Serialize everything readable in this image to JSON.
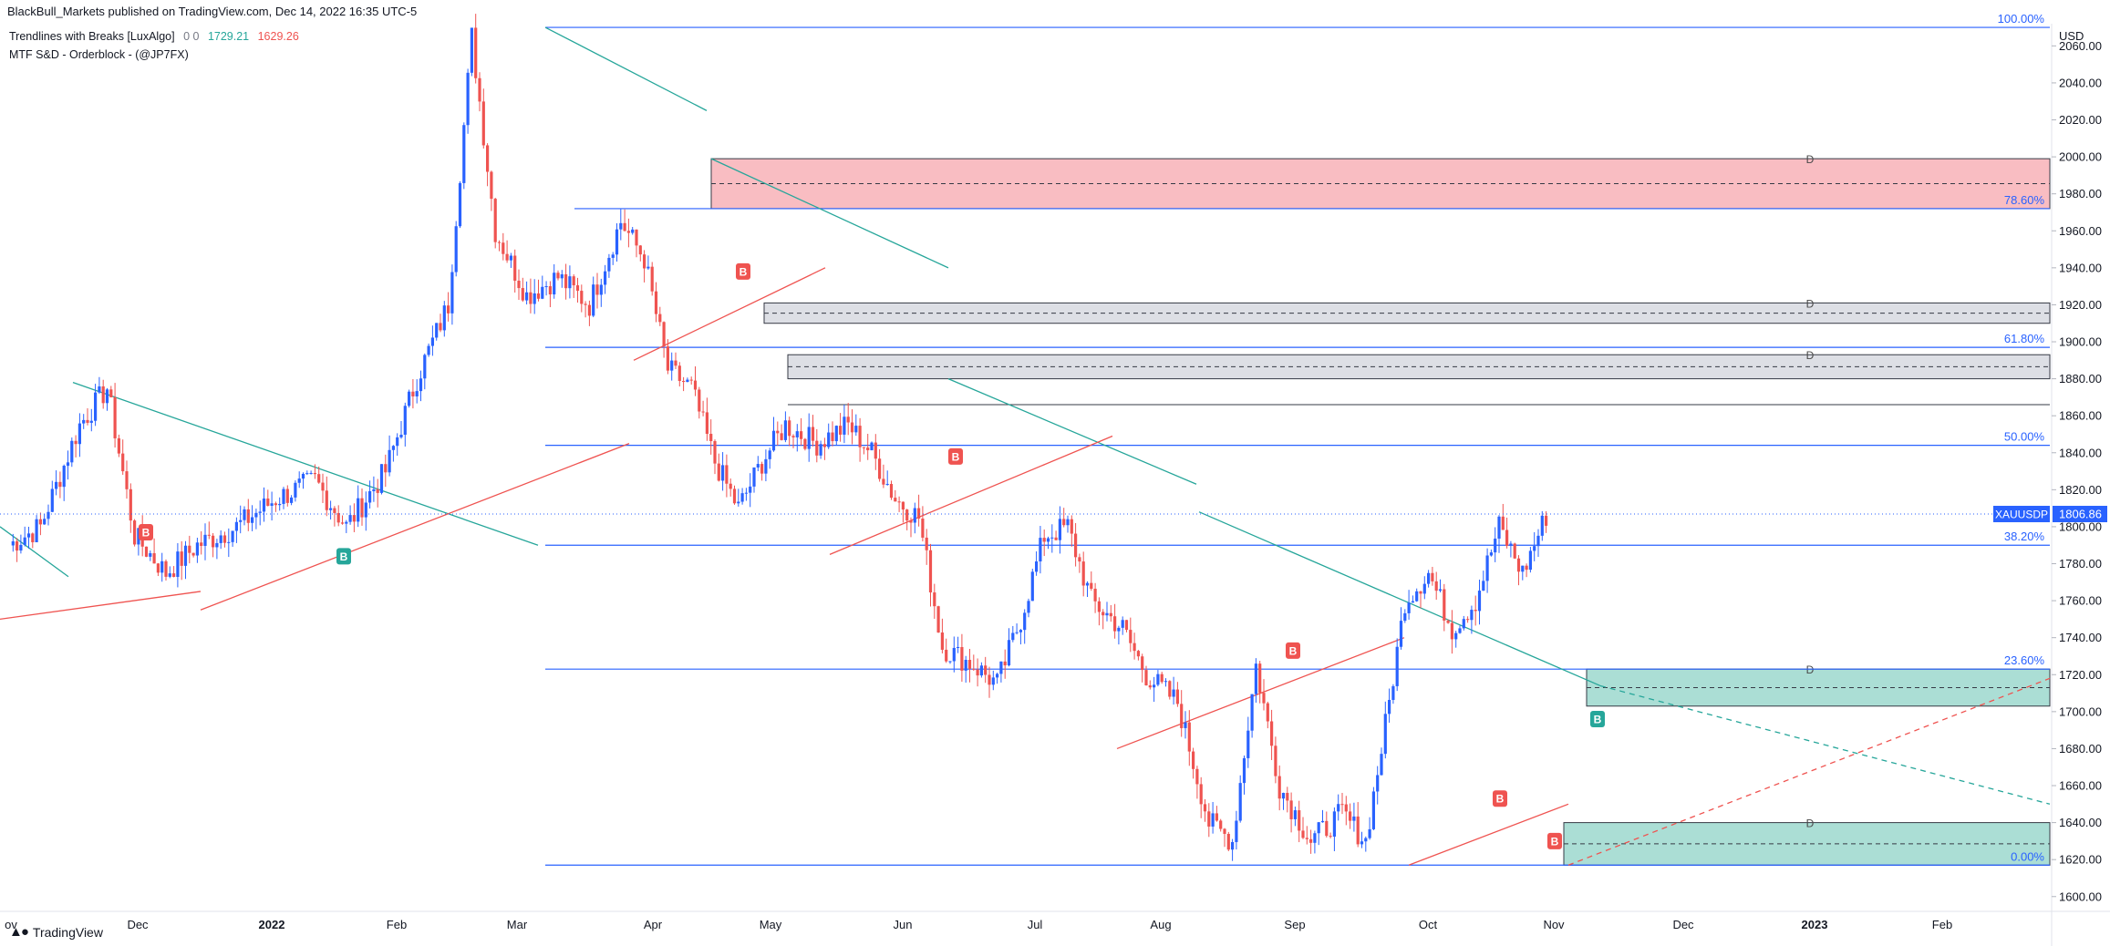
{
  "header": {
    "published_by": "BlackBull_Markets published on TradingView.com, Dec 14, 2022 16:35 UTC-5"
  },
  "legend": {
    "indicator1_name": "Trendlines with Breaks [LuxAlgo]",
    "indicator1_zeros": "0  0",
    "indicator1_value_up": "1729.21",
    "indicator1_value_dn": "1629.26",
    "indicator2_name": "MTF S&D - Orderblock - (@JP7FX)"
  },
  "footer": {
    "brand": "TradingView",
    "logo_icon": "tradingview-logo-icon"
  },
  "price_axis": {
    "currency": "USD"
  },
  "symbol": {
    "name": "XAUUSDP",
    "last_price": "1806.86",
    "last_value": 1806.86
  },
  "colors": {
    "up": "#2962ff",
    "down": "#ef5350",
    "fib": "#2962ff",
    "teal_line": "#26a69a",
    "supply_zone": "#f7a7ae",
    "demand_zone": "#8fd3c7",
    "neutral_zone": "#d1d4dc",
    "break_bull": "#26a69a",
    "break_bear": "#ef5350"
  },
  "chart_data": {
    "type": "candlestick",
    "x_ticks": [
      "ov",
      "Dec",
      "2022",
      "Feb",
      "Mar",
      "Apr",
      "May",
      "Jun",
      "Jul",
      "Aug",
      "Sep",
      "Oct",
      "Nov",
      "Dec",
      "2023",
      "Feb"
    ],
    "y_ticks": [
      1600,
      1620,
      1640,
      1660,
      1680,
      1700,
      1720,
      1740,
      1760,
      1780,
      1800,
      1820,
      1840,
      1860,
      1880,
      1900,
      1920,
      1940,
      1960,
      1980,
      2000,
      2020,
      2040,
      2060
    ],
    "ylim": [
      1592,
      2072
    ],
    "fib_levels": [
      {
        "label": "100.00%",
        "price": 2070
      },
      {
        "label": "78.60%",
        "price": 1972
      },
      {
        "label": "61.80%",
        "price": 1897
      },
      {
        "label": "50.00%",
        "price": 1844
      },
      {
        "label": "38.20%",
        "price": 1790
      },
      {
        "label": "23.60%",
        "price": 1723
      },
      {
        "label": "0.00%",
        "price": 1617
      }
    ],
    "zones": [
      {
        "kind": "supply",
        "top": 1999,
        "bottom": 1972,
        "label": "D"
      },
      {
        "kind": "neutral",
        "top": 1921,
        "bottom": 1910,
        "label": "D"
      },
      {
        "kind": "neutral",
        "top": 1893,
        "bottom": 1880,
        "label": "D"
      },
      {
        "kind": "demand",
        "top": 1723,
        "bottom": 1703,
        "label": "D"
      },
      {
        "kind": "demand",
        "top": 1640,
        "bottom": 1617,
        "label": "D"
      }
    ],
    "break_labels": [
      "B",
      "B",
      "B",
      "B",
      "B",
      "B",
      "B",
      "B"
    ],
    "close_path": [
      {
        "i": 0,
        "price": 1790
      },
      {
        "i": 8,
        "price": 1800
      },
      {
        "i": 18,
        "price": 1855
      },
      {
        "i": 25,
        "price": 1875
      },
      {
        "i": 32,
        "price": 1795
      },
      {
        "i": 40,
        "price": 1775
      },
      {
        "i": 48,
        "price": 1790
      },
      {
        "i": 58,
        "price": 1800
      },
      {
        "i": 68,
        "price": 1815
      },
      {
        "i": 78,
        "price": 1825
      },
      {
        "i": 86,
        "price": 1800
      },
      {
        "i": 96,
        "price": 1830
      },
      {
        "i": 104,
        "price": 1880
      },
      {
        "i": 112,
        "price": 1920
      },
      {
        "i": 118,
        "price": 2065
      },
      {
        "i": 124,
        "price": 1960
      },
      {
        "i": 132,
        "price": 1925
      },
      {
        "i": 140,
        "price": 1935
      },
      {
        "i": 148,
        "price": 1920
      },
      {
        "i": 156,
        "price": 1965
      },
      {
        "i": 162,
        "price": 1945
      },
      {
        "i": 168,
        "price": 1885
      },
      {
        "i": 174,
        "price": 1875
      },
      {
        "i": 180,
        "price": 1835
      },
      {
        "i": 186,
        "price": 1810
      },
      {
        "i": 192,
        "price": 1835
      },
      {
        "i": 198,
        "price": 1855
      },
      {
        "i": 206,
        "price": 1845
      },
      {
        "i": 214,
        "price": 1855
      },
      {
        "i": 220,
        "price": 1840
      },
      {
        "i": 226,
        "price": 1815
      },
      {
        "i": 232,
        "price": 1805
      },
      {
        "i": 238,
        "price": 1735
      },
      {
        "i": 246,
        "price": 1725
      },
      {
        "i": 252,
        "price": 1715
      },
      {
        "i": 258,
        "price": 1750
      },
      {
        "i": 264,
        "price": 1795
      },
      {
        "i": 270,
        "price": 1800
      },
      {
        "i": 276,
        "price": 1760
      },
      {
        "i": 284,
        "price": 1745
      },
      {
        "i": 290,
        "price": 1720
      },
      {
        "i": 298,
        "price": 1705
      },
      {
        "i": 306,
        "price": 1640
      },
      {
        "i": 312,
        "price": 1630
      },
      {
        "i": 318,
        "price": 1725
      },
      {
        "i": 324,
        "price": 1660
      },
      {
        "i": 332,
        "price": 1630
      },
      {
        "i": 340,
        "price": 1645
      },
      {
        "i": 346,
        "price": 1630
      },
      {
        "i": 352,
        "price": 1705
      },
      {
        "i": 356,
        "price": 1760
      },
      {
        "i": 362,
        "price": 1775
      },
      {
        "i": 368,
        "price": 1745
      },
      {
        "i": 374,
        "price": 1760
      },
      {
        "i": 380,
        "price": 1800
      },
      {
        "i": 386,
        "price": 1775
      },
      {
        "i": 392,
        "price": 1806
      }
    ]
  }
}
